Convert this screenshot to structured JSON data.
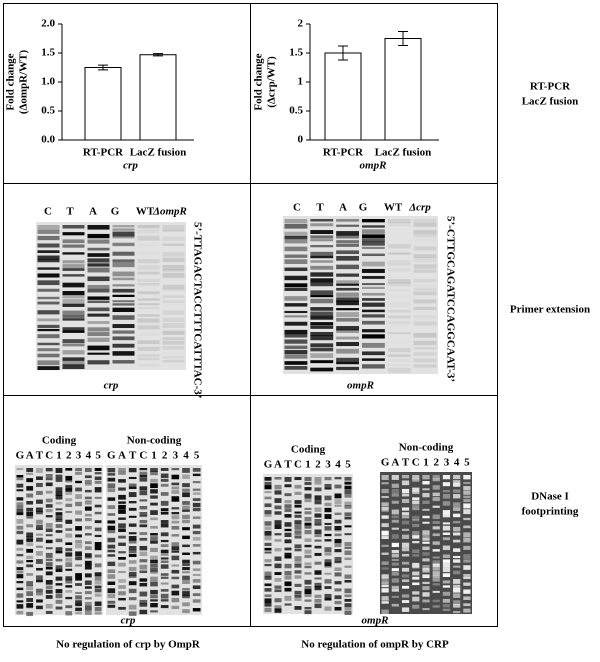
{
  "chart_data": [
    {
      "type": "bar",
      "ylabel": [
        "Fold change",
        "(ΔompR/WT)"
      ],
      "xlabel": "crp",
      "categories": [
        "RT-PCR",
        "LacZ fusion"
      ],
      "values": [
        1.25,
        1.47
      ],
      "errors": [
        0.04,
        0.02
      ],
      "color": "#ffffff",
      "ylim": [
        0,
        2
      ],
      "yticks": [
        {
          "value": 0,
          "label": "0.0"
        },
        {
          "value": 0.5,
          "label": "0.5"
        },
        {
          "value": 1,
          "label": "1.0"
        },
        {
          "value": 1.5,
          "label": "1.5"
        },
        {
          "value": 2,
          "label": "2.0"
        }
      ]
    },
    {
      "type": "bar",
      "ylabel": [
        "Fold change",
        "(Δcrp/WT)"
      ],
      "xlabel": "ompR",
      "categories": [
        "RT-PCR",
        "LacZ fusion"
      ],
      "values": [
        1.5,
        1.75
      ],
      "errors": [
        0.12,
        0.12
      ],
      "color": "#ffffff",
      "ylim": [
        0,
        2
      ],
      "yticks": [
        0,
        0.5,
        1,
        1.5,
        2
      ]
    }
  ],
  "row_labels": [
    [
      "RT-PCR",
      "LacZ fusion"
    ],
    [
      "Primer extension"
    ],
    [
      "DNase I",
      "footprinting"
    ]
  ],
  "primer_extension": [
    {
      "lanes": [
        "C",
        "T",
        "A",
        "G",
        "WT",
        "ΔompR"
      ],
      "sequence": "5’-TTAGACTACCTTTCATTTAC-3’",
      "label": "crp"
    },
    {
      "lanes": [
        "C",
        "T",
        "A",
        "G",
        "WT",
        "Δcrp"
      ],
      "sequence": "5’-CTTGCAGATCCAGGCAAT-3’",
      "label": "ompR"
    }
  ],
  "footprinting": [
    {
      "strands": [
        {
          "title": "Coding",
          "lanes": [
            "G",
            "A",
            "T",
            "C",
            "1",
            "2",
            "3",
            "4",
            "5"
          ]
        },
        {
          "title": "Non-coding",
          "lanes": [
            "G",
            "A",
            "T",
            "C",
            "1",
            "2",
            "3",
            "4",
            "5"
          ]
        }
      ],
      "label": "crp"
    },
    {
      "strands": [
        {
          "title": "Coding",
          "lanes": [
            "G",
            "A",
            "T",
            "C",
            "1",
            "2",
            "3",
            "4",
            "5"
          ]
        },
        {
          "title": "Non-coding",
          "lanes": [
            "G",
            "A",
            "T",
            "C",
            "1",
            "2",
            "3",
            "4",
            "5"
          ]
        }
      ],
      "label": "ompR"
    }
  ],
  "captions": [
    "No regulation of crp by OmpR",
    "No regulation of ompR by CRP"
  ]
}
